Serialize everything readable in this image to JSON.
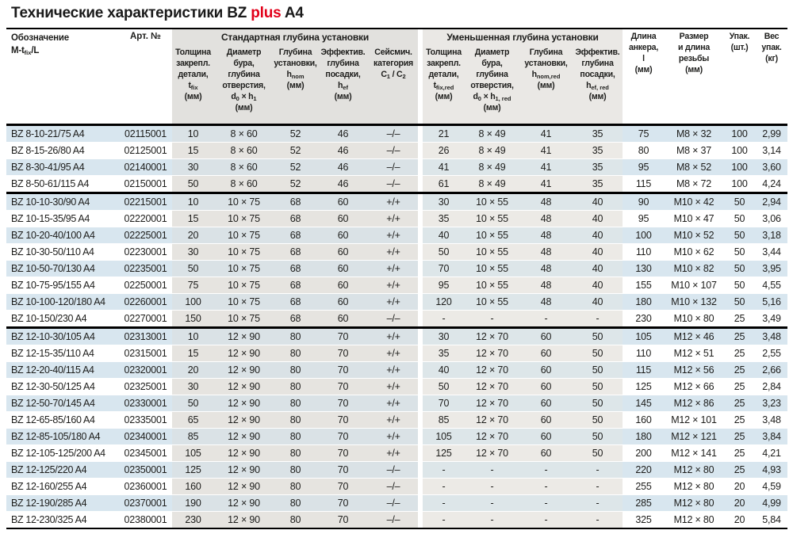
{
  "title": {
    "part1": "Технические характеристики BZ ",
    "red": "plus",
    "part2": " A4"
  },
  "colors": {
    "accent_red": "#e2001a",
    "row_blue": "#d8e6ef",
    "group_gray": "#e2e1de"
  },
  "header": {
    "designation": {
      "l1": "Обозначение",
      "pre": "M-t",
      "sub": "fix",
      "post": "/L"
    },
    "art": "Арт. №",
    "group_standard": "Стандартная глубина установки",
    "group_reduced": "Уменьшенная глубина установки",
    "std": {
      "thickness": {
        "l1": "Толщина",
        "l2": "закрепл.",
        "l3": "детали,",
        "f1": "t",
        "f1s": "fix",
        "unit": "(мм)"
      },
      "diameter": {
        "l1": "Диаметр",
        "l2": "бура,",
        "l3": "глубина",
        "l4": "отверстия,",
        "f1": "d",
        "f1s": "0",
        "fx": " × ",
        "f2": "h",
        "f2s": "1",
        "unit": "(мм)"
      },
      "depth": {
        "l1": "Глубина",
        "l2": "установки,",
        "f1": "h",
        "f1s": "nom",
        "unit": "(мм)"
      },
      "eff": {
        "l1": "Эффектив.",
        "l2": "глубина",
        "l3": "посадки,",
        "f1": "h",
        "f1s": "ef",
        "unit": "(мм)"
      },
      "seismic": {
        "l1": "Сейсмич.",
        "l2": "категория",
        "f1": "C",
        "f1s": "1",
        "fx": " / ",
        "f2": "C",
        "f2s": "2"
      }
    },
    "red": {
      "thickness": {
        "l1": "Толщина",
        "l2": "закрепл.",
        "l3": "детали,",
        "f1": "t",
        "f1s": "fix,red",
        "unit": "(мм)"
      },
      "diameter": {
        "l1": "Диаметр",
        "l2": "бура,",
        "l3": "глубина",
        "l4": "отверстия,",
        "f1": "d",
        "f1s": "0",
        "fx": " × ",
        "f2": "h",
        "f2s": "1, red",
        "unit": "(мм)"
      },
      "depth": {
        "l1": "Глубина",
        "l2": "установки,",
        "f1": "h",
        "f1s": "nom,red",
        "unit": "(мм)"
      },
      "eff": {
        "l1": "Эффектив.",
        "l2": "глубина",
        "l3": "посадки,",
        "f1": "h",
        "f1s": "ef, red",
        "unit": "(мм)"
      }
    },
    "length": {
      "l1": "Длина",
      "l2": "анкера,",
      "l3": "l",
      "l4": "(мм)"
    },
    "size": {
      "l1": "Размер",
      "l2": "и длина",
      "l3": "резьбы",
      "l4": "(мм)"
    },
    "pack": {
      "l1": "Упак.",
      "l2": "(шт.)"
    },
    "weight": {
      "l1": "Вес",
      "l2": "упак.",
      "l3": "(кг)"
    }
  },
  "rows": {
    "groups": [
      [
        [
          "BZ 8-10-21/75 A4",
          "02115001",
          "10",
          "8 × 60",
          "52",
          "46",
          "–/–",
          "21",
          "8 × 49",
          "41",
          "35",
          "75",
          "M8 × 32",
          "100",
          "2,99"
        ],
        [
          "BZ 8-15-26/80 A4",
          "02125001",
          "15",
          "8 × 60",
          "52",
          "46",
          "–/–",
          "26",
          "8 × 49",
          "41",
          "35",
          "80",
          "M8 × 37",
          "100",
          "3,14"
        ],
        [
          "BZ 8-30-41/95 A4",
          "02140001",
          "30",
          "8 × 60",
          "52",
          "46",
          "–/–",
          "41",
          "8 × 49",
          "41",
          "35",
          "95",
          "M8 × 52",
          "100",
          "3,60"
        ],
        [
          "BZ 8-50-61/115 A4",
          "02150001",
          "50",
          "8 × 60",
          "52",
          "46",
          "–/–",
          "61",
          "8 × 49",
          "41",
          "35",
          "115",
          "M8 × 72",
          "100",
          "4,24"
        ]
      ],
      [
        [
          "BZ 10-10-30/90 A4",
          "02215001",
          "10",
          "10 × 75",
          "68",
          "60",
          "+/+",
          "30",
          "10 × 55",
          "48",
          "40",
          "90",
          "M10 × 42",
          "50",
          "2,94"
        ],
        [
          "BZ 10-15-35/95 A4",
          "02220001",
          "15",
          "10 × 75",
          "68",
          "60",
          "+/+",
          "35",
          "10 × 55",
          "48",
          "40",
          "95",
          "M10 × 47",
          "50",
          "3,06"
        ],
        [
          "BZ 10-20-40/100 A4",
          "02225001",
          "20",
          "10 × 75",
          "68",
          "60",
          "+/+",
          "40",
          "10 × 55",
          "48",
          "40",
          "100",
          "M10 × 52",
          "50",
          "3,18"
        ],
        [
          "BZ 10-30-50/110 A4",
          "02230001",
          "30",
          "10 × 75",
          "68",
          "60",
          "+/+",
          "50",
          "10 × 55",
          "48",
          "40",
          "110",
          "M10 × 62",
          "50",
          "3,44"
        ],
        [
          "BZ 10-50-70/130 A4",
          "02235001",
          "50",
          "10 × 75",
          "68",
          "60",
          "+/+",
          "70",
          "10 × 55",
          "48",
          "40",
          "130",
          "M10 × 82",
          "50",
          "3,95"
        ],
        [
          "BZ 10-75-95/155 A4",
          "02250001",
          "75",
          "10 × 75",
          "68",
          "60",
          "+/+",
          "95",
          "10 × 55",
          "48",
          "40",
          "155",
          "M10 × 107",
          "50",
          "4,55"
        ],
        [
          "BZ 10-100-120/180 A4",
          "02260001",
          "100",
          "10 × 75",
          "68",
          "60",
          "+/+",
          "120",
          "10 × 55",
          "48",
          "40",
          "180",
          "M10 × 132",
          "50",
          "5,16"
        ],
        [
          "BZ 10-150/230 A4",
          "02270001",
          "150",
          "10 × 75",
          "68",
          "60",
          "–/–",
          "-",
          "-",
          "-",
          "-",
          "230",
          "M10 × 80",
          "25",
          "3,49"
        ]
      ],
      [
        [
          "BZ 12-10-30/105 A4",
          "02313001",
          "10",
          "12 × 90",
          "80",
          "70",
          "+/+",
          "30",
          "12 × 70",
          "60",
          "50",
          "105",
          "M12 × 46",
          "25",
          "3,48"
        ],
        [
          "BZ 12-15-35/110 A4",
          "02315001",
          "15",
          "12 × 90",
          "80",
          "70",
          "+/+",
          "35",
          "12 × 70",
          "60",
          "50",
          "110",
          "M12 × 51",
          "25",
          "2,55"
        ],
        [
          "BZ 12-20-40/115 A4",
          "02320001",
          "20",
          "12 × 90",
          "80",
          "70",
          "+/+",
          "40",
          "12 × 70",
          "60",
          "50",
          "115",
          "M12 × 56",
          "25",
          "2,66"
        ],
        [
          "BZ 12-30-50/125 A4",
          "02325001",
          "30",
          "12 × 90",
          "80",
          "70",
          "+/+",
          "50",
          "12 × 70",
          "60",
          "50",
          "125",
          "M12 × 66",
          "25",
          "2,84"
        ],
        [
          "BZ 12-50-70/145 A4",
          "02330001",
          "50",
          "12 × 90",
          "80",
          "70",
          "+/+",
          "70",
          "12 × 70",
          "60",
          "50",
          "145",
          "M12 × 86",
          "25",
          "3,23"
        ],
        [
          "BZ 12-65-85/160 A4",
          "02335001",
          "65",
          "12 × 90",
          "80",
          "70",
          "+/+",
          "85",
          "12 × 70",
          "60",
          "50",
          "160",
          "M12 × 101",
          "25",
          "3,48"
        ],
        [
          "BZ 12-85-105/180 A4",
          "02340001",
          "85",
          "12 × 90",
          "80",
          "70",
          "+/+",
          "105",
          "12 × 70",
          "60",
          "50",
          "180",
          "M12 × 121",
          "25",
          "3,84"
        ],
        [
          "BZ 12-105-125/200 A4",
          "02345001",
          "105",
          "12 × 90",
          "80",
          "70",
          "+/+",
          "125",
          "12 × 70",
          "60",
          "50",
          "200",
          "M12 × 141",
          "25",
          "4,21"
        ],
        [
          "BZ 12-125/220 A4",
          "02350001",
          "125",
          "12 × 90",
          "80",
          "70",
          "–/–",
          "-",
          "-",
          "-",
          "-",
          "220",
          "M12 × 80",
          "25",
          "4,93"
        ],
        [
          "BZ 12-160/255 A4",
          "02360001",
          "160",
          "12 × 90",
          "80",
          "70",
          "–/–",
          "-",
          "-",
          "-",
          "-",
          "255",
          "M12 × 80",
          "20",
          "4,59"
        ],
        [
          "BZ 12-190/285 A4",
          "02370001",
          "190",
          "12 × 90",
          "80",
          "70",
          "–/–",
          "-",
          "-",
          "-",
          "-",
          "285",
          "M12 × 80",
          "20",
          "4,99"
        ],
        [
          "BZ 12-230/325 A4",
          "02380001",
          "230",
          "12 × 90",
          "80",
          "70",
          "–/–",
          "-",
          "-",
          "-",
          "-",
          "325",
          "M12 × 80",
          "20",
          "5,84"
        ]
      ]
    ]
  }
}
